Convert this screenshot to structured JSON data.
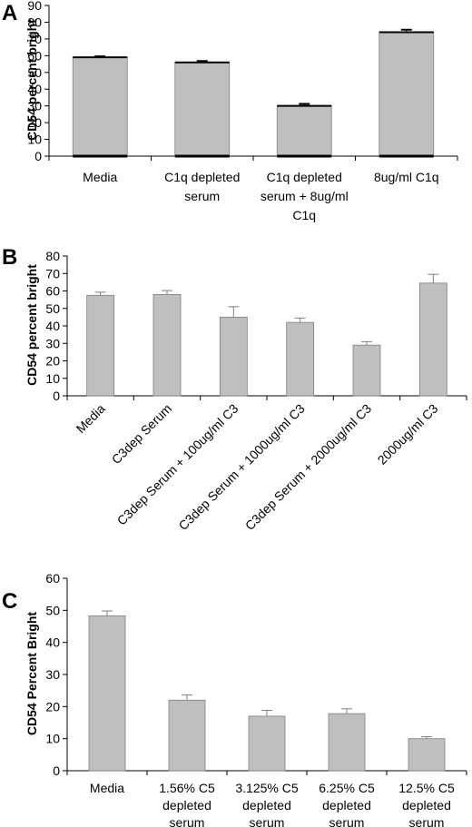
{
  "chart_data": [
    {
      "type": "bar",
      "panel_label": "A",
      "ylabel": "CD54 percent bright",
      "ylim": [
        0,
        90
      ],
      "yticks": [
        0,
        10,
        20,
        30,
        40,
        50,
        60,
        70,
        80,
        90
      ],
      "categories": [
        "Media",
        "C1q depleted serum",
        "C1q depleted serum + 8ug/ml C1q",
        "8ug/ml C1q"
      ],
      "category_lines": [
        [
          "Media"
        ],
        [
          "C1q depleted",
          "serum"
        ],
        [
          "C1q depleted",
          "serum + 8ug/ml",
          "C1q"
        ],
        [
          "8ug/ml C1q"
        ]
      ],
      "values": [
        59,
        56,
        30,
        74
      ],
      "errors": [
        0.6,
        0.8,
        1.2,
        1.5
      ],
      "bar_color": "#bfbfbf",
      "grid": false
    },
    {
      "type": "bar",
      "panel_label": "B",
      "ylabel": "CD54 percent bright",
      "ylim": [
        0,
        80
      ],
      "yticks": [
        0,
        10,
        20,
        30,
        40,
        50,
        60,
        70,
        80
      ],
      "categories": [
        "Media",
        "C3dep Serum",
        "C3dep Serum + 100ug/ml C3",
        "C3dep Serum + 1000ug/ml C3",
        "C3dep Serum + 2000ug/ml C3",
        "2000ug/ml C3"
      ],
      "values": [
        57.5,
        58,
        45,
        42,
        29,
        64.5
      ],
      "errors": [
        1.8,
        2.2,
        6,
        2.5,
        2,
        5
      ],
      "bar_color": "#bfbfbf",
      "grid": false
    },
    {
      "type": "bar",
      "panel_label": "C",
      "ylabel": "CD54 Percent Bright",
      "ylim": [
        0,
        60
      ],
      "yticks": [
        0,
        10,
        20,
        30,
        40,
        50,
        60
      ],
      "categories": [
        "Media",
        "1.56% C5 depleted serum",
        "3.125% C5 depleted serum",
        "6.25% C5 depleted serum",
        "12.5% C5 depleted serum"
      ],
      "category_lines": [
        [
          "Media"
        ],
        [
          "1.56% C5",
          "depleted",
          "serum"
        ],
        [
          "3.125% C5",
          "depleted",
          "serum"
        ],
        [
          "6.25% C5",
          "depleted",
          "serum"
        ],
        [
          "12.5% C5",
          "depleted",
          "serum"
        ]
      ],
      "values": [
        48.3,
        22,
        17,
        17.8,
        10
      ],
      "errors": [
        1.5,
        1.6,
        1.8,
        1.5,
        0.6
      ],
      "bar_color": "#bfbfbf",
      "grid": false
    }
  ]
}
